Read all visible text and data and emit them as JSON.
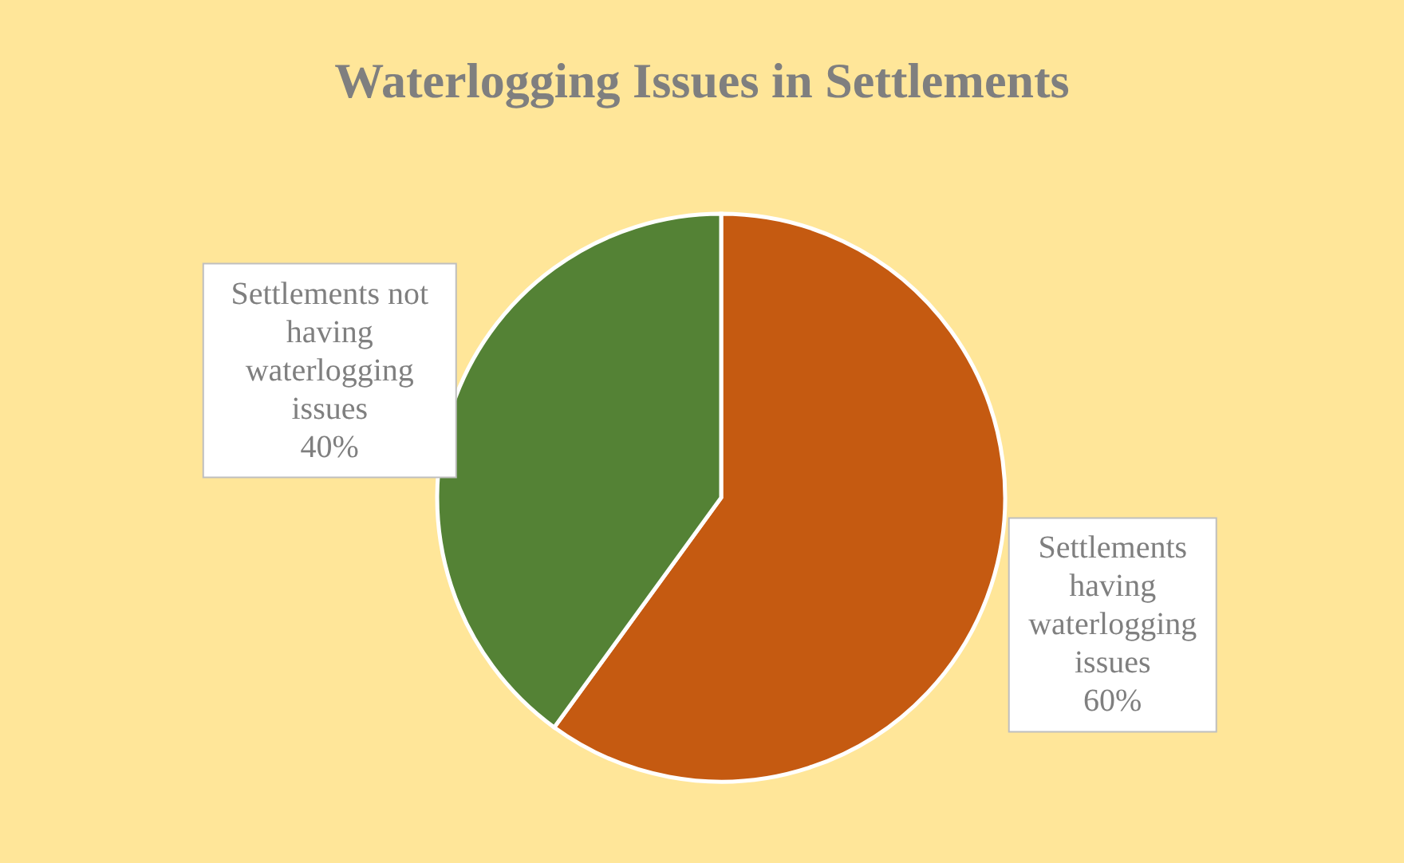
{
  "chart_data": {
    "type": "pie",
    "title": "Waterlogging Issues in Settlements",
    "categories": [
      "Settlements having waterlogging issues",
      "Settlements not having waterlogging issues"
    ],
    "values": [
      60,
      40
    ],
    "colors": [
      "#c55a11",
      "#548235"
    ],
    "value_labels": [
      "60%",
      "40%"
    ]
  }
}
